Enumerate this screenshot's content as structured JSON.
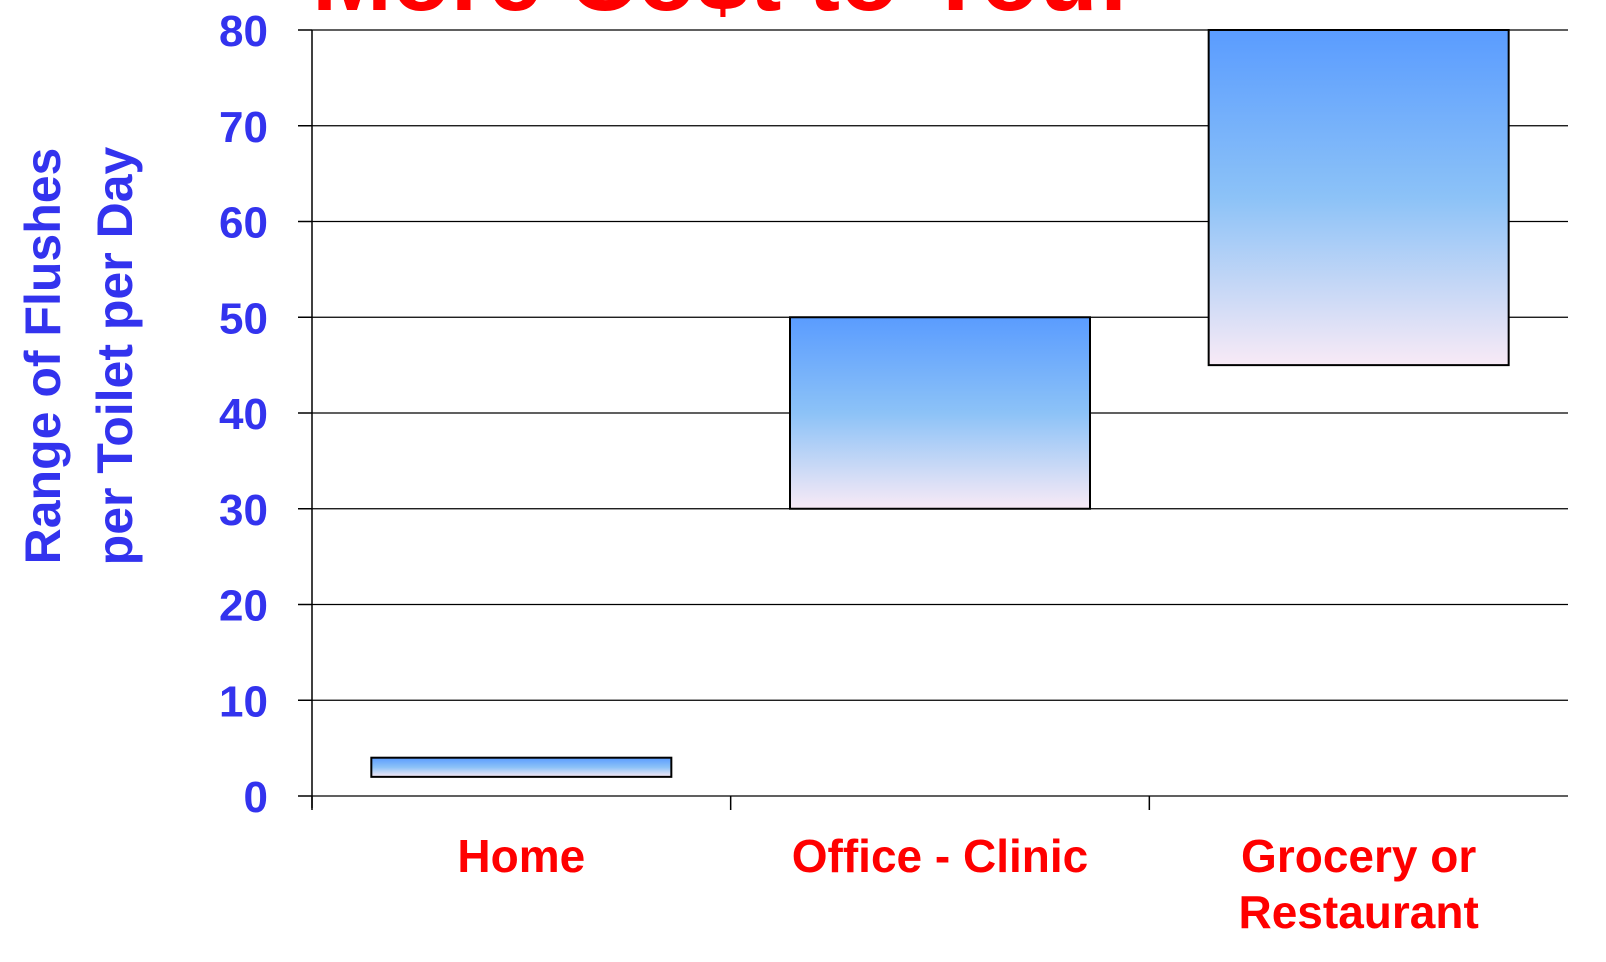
{
  "chart_data": {
    "type": "floating-bar",
    "title": "More Co$t to You!",
    "ylabel": [
      "Range of Flushes",
      "per Toilet per Day"
    ],
    "categories": [
      "Home",
      "Office - Clinic",
      "Grocery or Restaurant"
    ],
    "values": [
      [
        2,
        4
      ],
      [
        30,
        50
      ],
      [
        45,
        80
      ]
    ],
    "ylim": [
      0,
      80
    ],
    "yticks": [
      0,
      10,
      20,
      30,
      40,
      50,
      60,
      70,
      80
    ],
    "grid": true,
    "gradient": [
      "#5a9cff",
      "#8cc2f7",
      "#f8eaf6"
    ]
  }
}
